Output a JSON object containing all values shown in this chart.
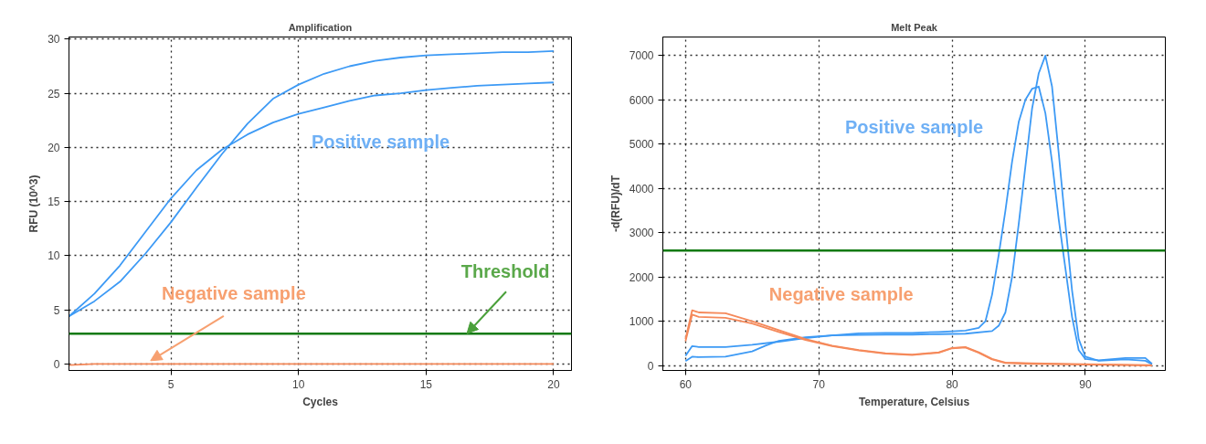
{
  "chart_data": [
    {
      "type": "line",
      "title": "Amplification",
      "xlabel": "Cycles",
      "ylabel": "RFU (10^3)",
      "x": [
        1,
        2,
        3,
        4,
        5,
        6,
        7,
        8,
        9,
        10,
        11,
        12,
        13,
        14,
        15,
        16,
        17,
        18,
        19,
        20
      ],
      "series": [
        {
          "color": "#3d9af5",
          "values": [
            4.4,
            6.5,
            9.1,
            12.2,
            15.3,
            17.9,
            19.8,
            21.2,
            22.3,
            23.1,
            23.7,
            24.3,
            24.8,
            25.0,
            25.3,
            25.5,
            25.7,
            25.8,
            25.9,
            26.0
          ]
        },
        {
          "color": "#3d9af5",
          "values": [
            4.4,
            5.8,
            7.6,
            10.2,
            13.1,
            16.3,
            19.4,
            22.2,
            24.5,
            25.8,
            26.8,
            27.5,
            28.0,
            28.3,
            28.5,
            28.6,
            28.7,
            28.8,
            28.8,
            28.9
          ]
        },
        {
          "color": "#f5895a",
          "values": [
            -0.1,
            0,
            0,
            0,
            0,
            0,
            0,
            0,
            0,
            0,
            0,
            0,
            0,
            0,
            0,
            0,
            0,
            0,
            0,
            0
          ]
        }
      ],
      "ref_lines": [
        {
          "axis": "y",
          "value": 2.8,
          "color": "#137a13"
        }
      ],
      "annotations": [
        "Positive sample",
        {
          "text": "Negative sample",
          "x": 4.2,
          "y": 0.3
        },
        {
          "text": "Threshold",
          "x": 16.6,
          "y": 2.8
        }
      ],
      "xlim": [
        1,
        20.7
      ],
      "ylim": [
        -0.6,
        30.2
      ],
      "xticks": [
        5,
        10,
        15,
        20
      ],
      "yticks": [
        0,
        5,
        10,
        15,
        20,
        25,
        30
      ],
      "grid": true,
      "line_style": "solid",
      "marker": "none"
    },
    {
      "type": "line",
      "title": "Melt Peak",
      "xlabel": "Temperature, Celsius",
      "ylabel": "-d(RFU)/dT",
      "series": [
        {
          "color": "#3d9af5",
          "x": [
            60,
            60.5,
            61,
            63,
            65,
            67,
            69,
            71,
            73,
            75,
            77,
            79,
            81,
            82,
            82.5,
            83,
            83.5,
            84,
            84.5,
            85,
            85.5,
            86,
            86.5,
            87,
            87.5,
            88,
            88.5,
            89,
            89.5,
            90,
            91,
            93,
            94.5,
            95
          ],
          "values": [
            220,
            440,
            420,
            420,
            470,
            540,
            620,
            680,
            730,
            740,
            740,
            760,
            790,
            850,
            1000,
            1600,
            2500,
            3500,
            4600,
            5500,
            6000,
            6250,
            6300,
            5700,
            4600,
            3300,
            2200,
            1100,
            350,
            150,
            120,
            170,
            170,
            40
          ]
        },
        {
          "color": "#3d9af5",
          "x": [
            60,
            60.5,
            61,
            63,
            65,
            66,
            67,
            69,
            71,
            73,
            75,
            77,
            79,
            81,
            83,
            83.5,
            84,
            84.5,
            85,
            85.5,
            86,
            86.5,
            87,
            87.5,
            88,
            88.5,
            89,
            89.5,
            90,
            91,
            93,
            94.5,
            95
          ],
          "values": [
            100,
            200,
            190,
            200,
            320,
            450,
            560,
            640,
            680,
            690,
            700,
            700,
            710,
            720,
            780,
            900,
            1200,
            2000,
            3200,
            4500,
            5800,
            6600,
            7000,
            6300,
            4800,
            3200,
            1700,
            600,
            200,
            110,
            140,
            110,
            30
          ]
        },
        {
          "color": "#f5895a",
          "x": [
            60,
            60.5,
            61,
            63,
            65,
            67,
            69,
            71,
            73,
            75,
            77,
            79,
            80,
            81,
            82,
            83,
            84,
            86,
            88,
            90,
            95
          ],
          "values": [
            600,
            1250,
            1200,
            1180,
            1000,
            800,
            600,
            450,
            350,
            280,
            250,
            300,
            400,
            420,
            300,
            150,
            70,
            50,
            40,
            30,
            10
          ]
        },
        {
          "color": "#f5895a",
          "x": [
            60,
            60.5,
            61,
            63,
            65,
            67,
            69,
            71,
            73,
            75,
            77,
            79,
            80,
            81,
            82,
            83,
            84,
            86,
            88,
            90,
            95
          ],
          "values": [
            550,
            1150,
            1100,
            1080,
            950,
            760,
            580,
            440,
            340,
            270,
            240,
            290,
            390,
            410,
            290,
            140,
            60,
            40,
            30,
            20,
            0
          ]
        }
      ],
      "ref_lines": [
        {
          "axis": "y",
          "value": 2600,
          "color": "#137a13"
        }
      ],
      "annotations": [
        "Positive sample",
        "Negative sample"
      ],
      "xlim": [
        58.3,
        96
      ],
      "ylim": [
        -110,
        7420
      ],
      "xticks": [
        60,
        70,
        80,
        90
      ],
      "yticks": [
        0,
        1000,
        2000,
        3000,
        4000,
        5000,
        6000,
        7000
      ],
      "grid": true,
      "line_style": "solid",
      "marker": "none"
    }
  ]
}
